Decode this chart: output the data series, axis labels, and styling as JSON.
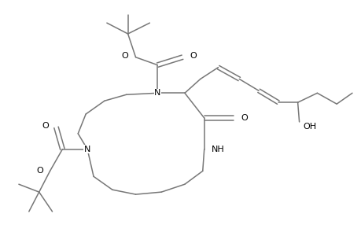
{
  "background_color": "#ffffff",
  "line_color": "#777777",
  "figsize": [
    4.6,
    3.0
  ],
  "dpi": 100,
  "xlim": [
    0,
    4.6
  ],
  "ylim": [
    0,
    3.0
  ]
}
